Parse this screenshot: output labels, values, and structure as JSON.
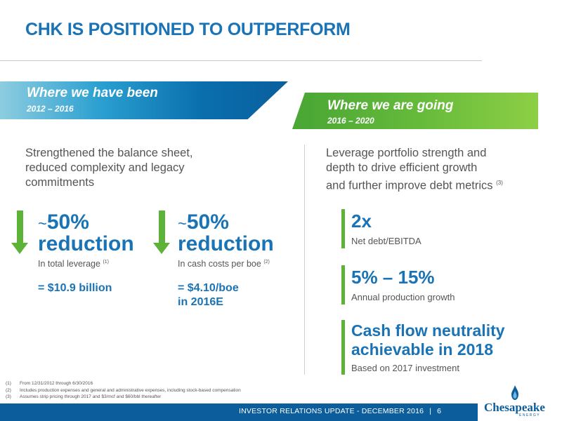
{
  "title": "CHK IS POSITIONED TO OUTPERFORM",
  "left": {
    "banner_title": "Where we have been",
    "banner_years": "2012 – 2016",
    "lead_line1": "Strengthened the balance sheet,",
    "lead_line2": "reduced complexity and legacy",
    "lead_line3": "commitments",
    "stats": [
      {
        "tilde": "~",
        "value": "50%",
        "word": "reduction",
        "desc": "In total leverage",
        "note": "(1)",
        "result_line1": "= $10.9 billion",
        "result_line2": ""
      },
      {
        "tilde": "~",
        "value": "50%",
        "word": "reduction",
        "desc": "In cash costs per boe",
        "note": "(2)",
        "result_line1": "= $4.10/boe",
        "result_line2": "in 2016E"
      }
    ]
  },
  "right": {
    "banner_title": "Where we are going",
    "banner_years": "2016 – 2020",
    "lead_line1": "Leverage portfolio strength and",
    "lead_line2": "depth to drive efficient growth",
    "lead_line3": "and further improve debt metrics",
    "lead_note": "(3)",
    "metrics": [
      {
        "value": "2x",
        "desc": "Net debt/EBITDA"
      },
      {
        "value": "5% – 15%",
        "desc": "Annual production growth"
      },
      {
        "value_line1": "Cash flow neutrality",
        "value_line2": "achievable in 2018",
        "desc": "Based on 2017 investment"
      }
    ]
  },
  "footnotes": [
    {
      "num": "(1)",
      "text": "From 12/31/2012 through 6/30/2016"
    },
    {
      "num": "(2)",
      "text": "Includes production expenses and general and administrative expenses, including stock-based compensation"
    },
    {
      "num": "(3)",
      "text": "Assumes strip pricing through 2017 and $3/mcf and $60/bbl thereafter"
    }
  ],
  "footer": {
    "text": "INVESTOR RELATIONS UPDATE - DECEMBER 2016",
    "separator": "|",
    "page": "6",
    "logo": "Chesapeake",
    "logo_sub": "ENERGY"
  },
  "colors": {
    "blue": "#1a73b5",
    "green": "#5cb338",
    "navy": "#0c5d9b"
  }
}
